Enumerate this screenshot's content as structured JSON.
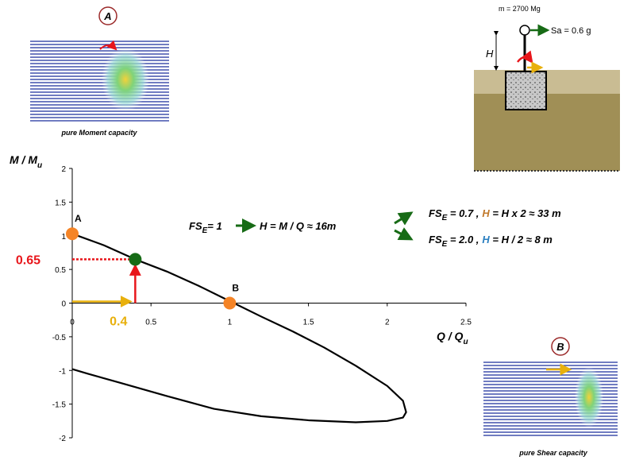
{
  "chart_data": {
    "type": "line",
    "y_label": [
      "M / M",
      "u"
    ],
    "x_label": [
      "Q / Q",
      "u"
    ],
    "xlim": [
      0,
      2.5
    ],
    "ylim": [
      -2,
      2
    ],
    "xticks": [
      0,
      0.5,
      1,
      1.5,
      2,
      2.5
    ],
    "yticks": [
      -2,
      -1.5,
      -1,
      -0.5,
      0,
      0.5,
      1,
      1.5,
      2
    ],
    "series": [
      {
        "color": "#000000",
        "x": [
          0,
          0.2,
          0.4,
          0.6,
          0.8,
          1,
          1.2,
          1.4,
          1.6,
          1.8,
          2,
          2.1,
          2.12,
          2.1,
          2.0,
          1.8,
          1.5,
          1.2,
          0.9,
          0.6,
          0.3,
          0.1,
          0
        ],
        "values": [
          1.03,
          0.86,
          0.65,
          0.47,
          0.26,
          0.03,
          -0.2,
          -0.42,
          -0.66,
          -0.93,
          -1.23,
          -1.45,
          -1.62,
          -1.7,
          -1.75,
          -1.77,
          -1.74,
          -1.68,
          -1.57,
          -1.38,
          -1.18,
          -1.05,
          -0.98
        ]
      }
    ],
    "points": {
      "x": [
        0,
        1
      ],
      "y": [
        1.03,
        0
      ],
      "labels": [
        "A",
        "B"
      ],
      "color": "#f58426"
    },
    "highlight": {
      "x": 0.4,
      "y": 0.65,
      "color": "#176b16",
      "x_color": "#e8b00c",
      "y_color": "#e8161b"
    }
  },
  "annotations": {
    "formula_main": {
      "fs": "FS",
      "sub": "E",
      "eq": "= 1",
      "result": "H = M / Q ≈  16m"
    },
    "formula_up": {
      "fs": "FS",
      "sub": "E",
      "eq": " = 0.7 ,",
      "h": "H",
      "rest": " = H x 2  ≈  33 m"
    },
    "formula_down": {
      "fs": "FS",
      "sub": "E",
      "eq": " = 2.0 ,",
      "h": "H",
      "rest": " = H / 2  ≈  8 m"
    },
    "panel_a": {
      "badge": "A",
      "caption": "pure  Moment capacity"
    },
    "panel_b": {
      "badge": "B",
      "caption": "pure Shear capacity"
    },
    "model": {
      "mass": "m = 2700 Mg",
      "accel": "Sa = 0.6 g",
      "height": "H"
    }
  }
}
